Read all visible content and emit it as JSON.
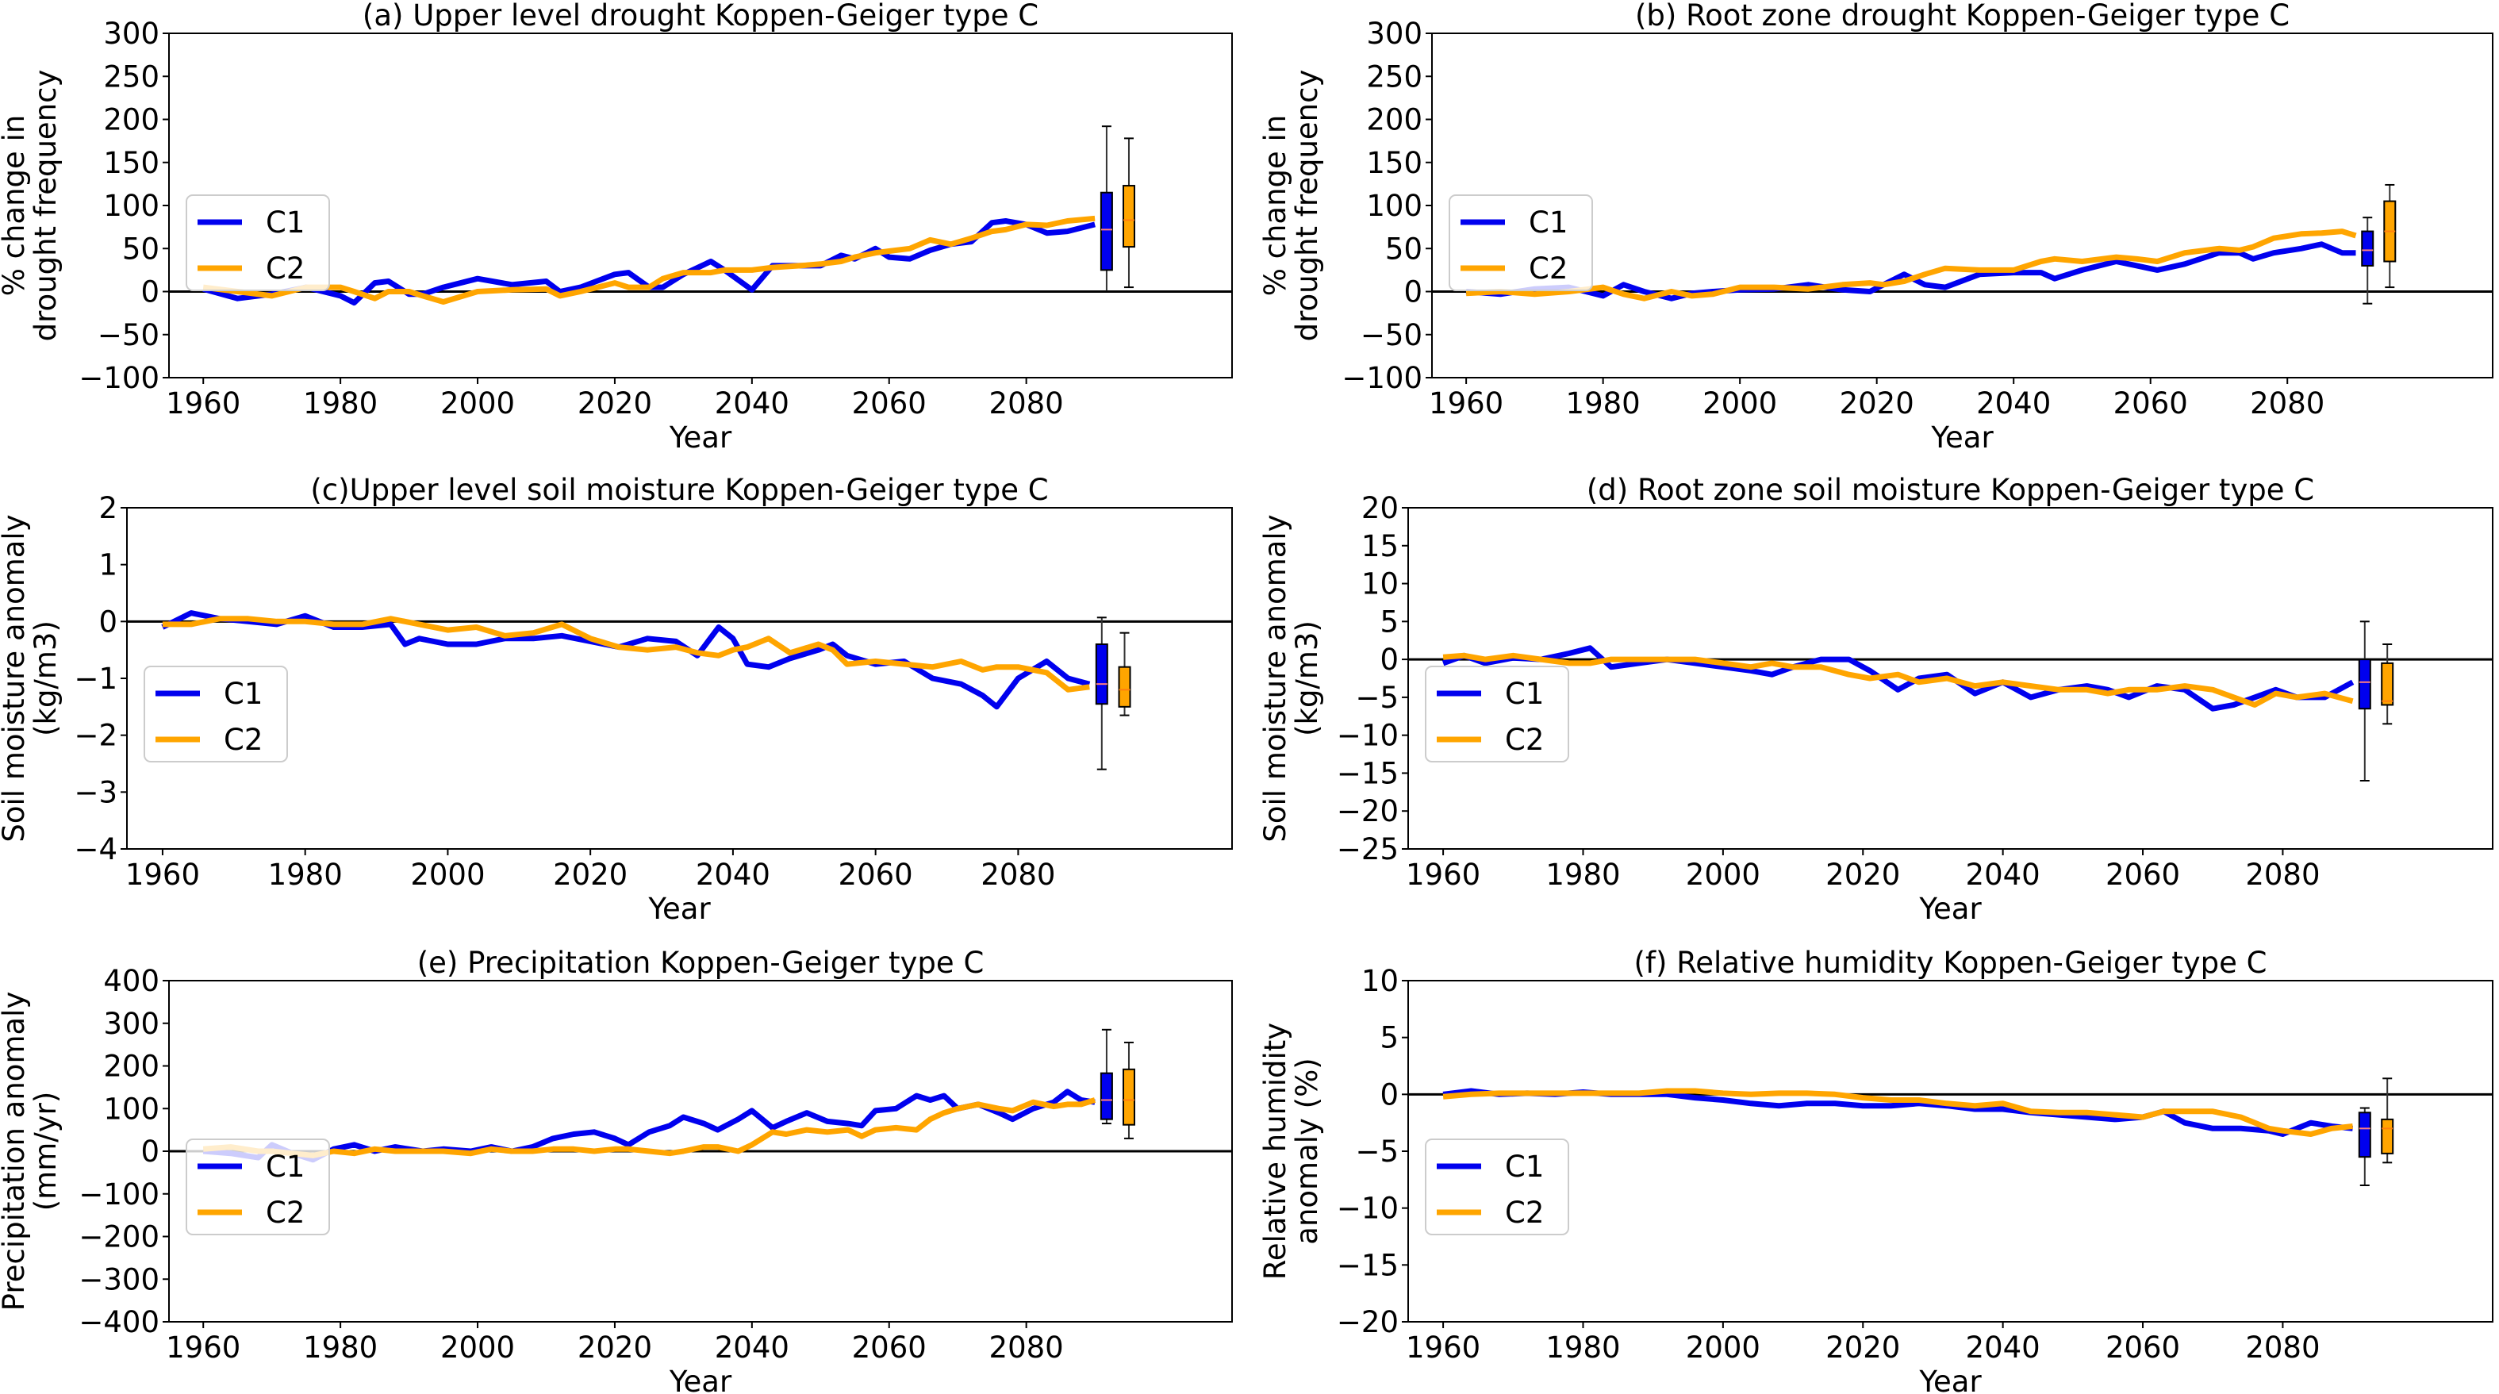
{
  "figure": {
    "colors": {
      "C1": "#0000ee",
      "C2": "#ffa500",
      "zero_line": "#000000",
      "median_C1": "#ff8080",
      "median_C2": "#ff7f0e"
    }
  },
  "chart_data": [
    {
      "id": "a",
      "type": "line",
      "title": "(a) Upper level drought Koppen-Geiger type C",
      "xlabel": "Year",
      "ylabel": [
        "% change in",
        "drought frequency"
      ],
      "xlim": [
        1955,
        2110
      ],
      "ylim": [
        -100,
        300
      ],
      "xticks": [
        1960,
        1980,
        2000,
        2020,
        2040,
        2060,
        2080
      ],
      "yticks": [
        -100,
        -50,
        0,
        50,
        100,
        150,
        200,
        250,
        300
      ],
      "legend": {
        "position": "lower-left",
        "entries": [
          "C1",
          "C2"
        ]
      },
      "x": [
        1960,
        1965,
        1970,
        1975,
        1980,
        1982,
        1985,
        1987,
        1990,
        1992,
        1995,
        2000,
        2005,
        2010,
        2012,
        2015,
        2020,
        2022,
        2025,
        2027,
        2030,
        2034,
        2036,
        2040,
        2043,
        2047,
        2050,
        2053,
        2055,
        2058,
        2060,
        2063,
        2066,
        2069,
        2072,
        2075,
        2077,
        2080,
        2083,
        2086,
        2090
      ],
      "series": [
        {
          "name": "C1",
          "values": [
            3,
            -8,
            -3,
            5,
            -5,
            -13,
            10,
            12,
            -3,
            -3,
            5,
            15,
            8,
            12,
            0,
            5,
            20,
            22,
            5,
            5,
            20,
            35,
            25,
            2,
            30,
            30,
            30,
            42,
            38,
            50,
            40,
            38,
            48,
            55,
            58,
            80,
            82,
            78,
            68,
            70,
            78
          ]
        },
        {
          "name": "C2",
          "values": [
            5,
            0,
            -5,
            5,
            5,
            0,
            -8,
            0,
            0,
            -5,
            -12,
            0,
            2,
            3,
            -5,
            0,
            10,
            5,
            5,
            15,
            22,
            22,
            25,
            25,
            28,
            30,
            32,
            35,
            40,
            45,
            47,
            50,
            60,
            55,
            62,
            70,
            72,
            78,
            77,
            82,
            85
          ]
        }
      ],
      "boxplots": [
        {
          "name": "C1",
          "whisker_low": 0,
          "q1": 25,
          "median": 72,
          "q3": 115,
          "whisker_high": 192
        },
        {
          "name": "C2",
          "whisker_low": 5,
          "q1": 52,
          "median": 83,
          "q3": 123,
          "whisker_high": 178
        }
      ]
    },
    {
      "id": "b",
      "type": "line",
      "title": "(b) Root zone drought Koppen-Geiger type C",
      "xlabel": "Year",
      "ylabel": [
        "% change in",
        "drought frequency"
      ],
      "xlim": [
        1955,
        2110
      ],
      "ylim": [
        -100,
        300
      ],
      "xticks": [
        1960,
        1980,
        2000,
        2020,
        2040,
        2060,
        2080
      ],
      "yticks": [
        -100,
        -50,
        0,
        50,
        100,
        150,
        200,
        250,
        300
      ],
      "legend": {
        "position": "lower-left",
        "entries": [
          "C1",
          "C2"
        ]
      },
      "x": [
        1960,
        1965,
        1970,
        1975,
        1980,
        1983,
        1986,
        1990,
        1993,
        1996,
        2000,
        2005,
        2010,
        2015,
        2019,
        2021,
        2024,
        2027,
        2030,
        2035,
        2040,
        2044,
        2046,
        2050,
        2055,
        2058,
        2061,
        2065,
        2070,
        2073,
        2075,
        2078,
        2082,
        2085,
        2088,
        2090
      ],
      "series": [
        {
          "name": "C1",
          "values": [
            0,
            -3,
            3,
            5,
            -5,
            8,
            0,
            -8,
            -2,
            0,
            2,
            3,
            8,
            2,
            0,
            8,
            20,
            8,
            5,
            20,
            22,
            22,
            15,
            25,
            35,
            30,
            25,
            32,
            45,
            45,
            38,
            45,
            50,
            55,
            45,
            45
          ]
        },
        {
          "name": "C2",
          "values": [
            -2,
            0,
            -3,
            0,
            5,
            -3,
            -8,
            0,
            -5,
            -3,
            5,
            5,
            3,
            8,
            10,
            8,
            12,
            20,
            27,
            25,
            25,
            35,
            38,
            35,
            40,
            38,
            35,
            45,
            50,
            48,
            52,
            62,
            67,
            68,
            70,
            65
          ]
        }
      ],
      "boxplots": [
        {
          "name": "C1",
          "whisker_low": -14,
          "q1": 30,
          "median": 48,
          "q3": 70,
          "whisker_high": 86
        },
        {
          "name": "C2",
          "whisker_low": 5,
          "q1": 35,
          "median": 70,
          "q3": 105,
          "whisker_high": 124
        }
      ]
    },
    {
      "id": "c",
      "type": "line",
      "title": "(c)Upper level soil moisture Koppen-Geiger type C",
      "xlabel": "Year",
      "ylabel": [
        "Soil moisture anomaly",
        "(kg/m3)"
      ],
      "xlim": [
        1955,
        2110
      ],
      "ylim": [
        -4,
        2
      ],
      "xticks": [
        1960,
        1980,
        2000,
        2020,
        2040,
        2060,
        2080
      ],
      "yticks": [
        -4,
        -3,
        -2,
        -1,
        0,
        1,
        2
      ],
      "legend": {
        "position": "lower-left",
        "entries": [
          "C1",
          "C2"
        ]
      },
      "x": [
        1960,
        1964,
        1968,
        1972,
        1976,
        1980,
        1984,
        1988,
        1992,
        1994,
        1996,
        2000,
        2004,
        2008,
        2012,
        2016,
        2020,
        2024,
        2028,
        2032,
        2035,
        2038,
        2040,
        2042,
        2045,
        2048,
        2052,
        2054,
        2056,
        2060,
        2064,
        2068,
        2072,
        2075,
        2077,
        2080,
        2084,
        2087,
        2090
      ],
      "series": [
        {
          "name": "C1",
          "values": [
            -0.1,
            0.15,
            0.05,
            0.0,
            -0.05,
            0.1,
            -0.1,
            -0.1,
            -0.05,
            -0.4,
            -0.3,
            -0.4,
            -0.4,
            -0.3,
            -0.3,
            -0.25,
            -0.35,
            -0.45,
            -0.3,
            -0.35,
            -0.6,
            -0.1,
            -0.3,
            -0.75,
            -0.8,
            -0.65,
            -0.5,
            -0.4,
            -0.6,
            -0.75,
            -0.7,
            -1.0,
            -1.1,
            -1.3,
            -1.5,
            -1.0,
            -0.7,
            -1.0,
            -1.1
          ]
        },
        {
          "name": "C2",
          "values": [
            -0.05,
            -0.05,
            0.05,
            0.05,
            0.0,
            0.0,
            -0.05,
            -0.05,
            0.05,
            0.0,
            -0.05,
            -0.15,
            -0.1,
            -0.25,
            -0.2,
            -0.05,
            -0.3,
            -0.45,
            -0.5,
            -0.45,
            -0.55,
            -0.6,
            -0.5,
            -0.45,
            -0.3,
            -0.55,
            -0.4,
            -0.5,
            -0.75,
            -0.7,
            -0.75,
            -0.8,
            -0.7,
            -0.85,
            -0.8,
            -0.8,
            -0.9,
            -1.2,
            -1.15
          ]
        }
      ],
      "boxplots": [
        {
          "name": "C1",
          "whisker_low": -2.6,
          "q1": -1.45,
          "median": -1.1,
          "q3": -0.4,
          "whisker_high": 0.07
        },
        {
          "name": "C2",
          "whisker_low": -1.65,
          "q1": -1.5,
          "median": -1.2,
          "q3": -0.8,
          "whisker_high": -0.2
        }
      ]
    },
    {
      "id": "d",
      "type": "line",
      "title": "(d) Root zone soil moisture Koppen-Geiger type C",
      "xlabel": "Year",
      "ylabel": [
        "Soil moisture anomaly",
        "(kg/m3)"
      ],
      "xlim": [
        1955,
        2110
      ],
      "ylim": [
        -25,
        20
      ],
      "xticks": [
        1960,
        1980,
        2000,
        2020,
        2040,
        2060,
        2080
      ],
      "yticks": [
        -25,
        -20,
        -15,
        -10,
        -5,
        0,
        5,
        10,
        15,
        20
      ],
      "legend": {
        "position": "lower-left",
        "entries": [
          "C1",
          "C2"
        ]
      },
      "x": [
        1960,
        1963,
        1966,
        1970,
        1974,
        1978,
        1981,
        1984,
        1988,
        1992,
        1996,
        2000,
        2004,
        2007,
        2010,
        2014,
        2018,
        2021,
        2025,
        2028,
        2032,
        2036,
        2040,
        2044,
        2048,
        2052,
        2055,
        2058,
        2062,
        2066,
        2070,
        2073,
        2076,
        2079,
        2082,
        2086,
        2090
      ],
      "series": [
        {
          "name": "C1",
          "values": [
            -0.5,
            0.5,
            -0.5,
            0.2,
            0.0,
            0.8,
            1.5,
            -1.0,
            -0.5,
            0.0,
            -0.5,
            -1.0,
            -1.5,
            -2.0,
            -1.0,
            0.0,
            0.0,
            -1.5,
            -4.0,
            -2.5,
            -2.0,
            -4.5,
            -3.0,
            -5.0,
            -4.0,
            -3.5,
            -4.0,
            -5.0,
            -3.5,
            -4.0,
            -6.5,
            -6.0,
            -5.0,
            -4.0,
            -5.0,
            -5.0,
            -3.0
          ]
        },
        {
          "name": "C2",
          "values": [
            0.3,
            0.5,
            0.0,
            0.5,
            0.0,
            -0.5,
            -0.5,
            0.0,
            0.0,
            0.0,
            0.0,
            -0.5,
            -1.0,
            -0.5,
            -1.0,
            -1.0,
            -2.0,
            -2.5,
            -2.0,
            -3.0,
            -2.5,
            -3.5,
            -3.0,
            -3.5,
            -4.0,
            -4.0,
            -4.5,
            -4.0,
            -4.0,
            -3.5,
            -4.0,
            -5.0,
            -6.0,
            -4.5,
            -5.0,
            -4.5,
            -5.5
          ]
        }
      ],
      "boxplots": [
        {
          "name": "C1",
          "whisker_low": -16,
          "q1": -6.5,
          "median": -3.0,
          "q3": 0.0,
          "whisker_high": 5.0
        },
        {
          "name": "C2",
          "whisker_low": -8.5,
          "q1": -6.0,
          "median": -5.5,
          "q3": -0.5,
          "whisker_high": 2.0
        }
      ]
    },
    {
      "id": "e",
      "type": "line",
      "title": "(e) Precipitation Koppen-Geiger type C",
      "xlabel": "Year",
      "ylabel": [
        "Precipitation anomaly",
        "(mm/yr)"
      ],
      "xlim": [
        1955,
        2110
      ],
      "ylim": [
        -400,
        400
      ],
      "xticks": [
        1960,
        1980,
        2000,
        2020,
        2040,
        2060,
        2080
      ],
      "yticks": [
        -400,
        -300,
        -200,
        -100,
        0,
        100,
        200,
        300,
        400
      ],
      "legend": {
        "position": "lower-left",
        "entries": [
          "C1",
          "C2"
        ]
      },
      "x": [
        1960,
        1964,
        1968,
        1970,
        1973,
        1976,
        1979,
        1982,
        1985,
        1988,
        1992,
        1995,
        1999,
        2002,
        2005,
        2008,
        2011,
        2014,
        2017,
        2020,
        2022,
        2025,
        2028,
        2030,
        2033,
        2035,
        2038,
        2040,
        2043,
        2045,
        2048,
        2051,
        2054,
        2056,
        2058,
        2061,
        2064,
        2066,
        2068,
        2070,
        2073,
        2076,
        2078,
        2081,
        2084,
        2086,
        2088,
        2090
      ],
      "series": [
        {
          "name": "C1",
          "values": [
            0,
            -5,
            -15,
            15,
            -5,
            -20,
            5,
            15,
            0,
            10,
            0,
            5,
            0,
            10,
            0,
            10,
            30,
            40,
            45,
            30,
            15,
            45,
            60,
            80,
            65,
            50,
            75,
            95,
            55,
            70,
            90,
            70,
            65,
            60,
            95,
            100,
            130,
            120,
            130,
            100,
            110,
            90,
            75,
            100,
            115,
            140,
            120,
            115
          ]
        },
        {
          "name": "C2",
          "values": [
            5,
            10,
            0,
            0,
            -5,
            -10,
            0,
            -5,
            5,
            0,
            0,
            0,
            -5,
            5,
            0,
            0,
            5,
            5,
            0,
            5,
            5,
            0,
            -5,
            0,
            10,
            10,
            0,
            15,
            45,
            40,
            50,
            45,
            50,
            35,
            50,
            55,
            50,
            75,
            90,
            100,
            110,
            100,
            95,
            115,
            105,
            110,
            110,
            120
          ]
        }
      ],
      "boxplots": [
        {
          "name": "C1",
          "whisker_low": 65,
          "q1": 75,
          "median": 120,
          "q3": 183,
          "whisker_high": 285
        },
        {
          "name": "C2",
          "whisker_low": 30,
          "q1": 62,
          "median": 120,
          "q3": 192,
          "whisker_high": 255
        }
      ]
    },
    {
      "id": "f",
      "type": "line",
      "title": "(f) Relative humidity Koppen-Geiger type C",
      "xlabel": "Year",
      "ylabel": [
        "Relative humidity",
        "anomaly (%)"
      ],
      "xlim": [
        1955,
        2110
      ],
      "ylim": [
        -20,
        10
      ],
      "xticks": [
        1960,
        1980,
        2000,
        2020,
        2040,
        2060,
        2080
      ],
      "yticks": [
        -20,
        -15,
        -10,
        -5,
        0,
        5,
        10
      ],
      "legend": {
        "position": "lower-left",
        "entries": [
          "C1",
          "C2"
        ]
      },
      "x": [
        1960,
        1964,
        1968,
        1972,
        1976,
        1980,
        1984,
        1988,
        1992,
        1996,
        2000,
        2004,
        2008,
        2012,
        2016,
        2020,
        2024,
        2028,
        2032,
        2036,
        2040,
        2044,
        2048,
        2052,
        2056,
        2060,
        2063,
        2066,
        2070,
        2074,
        2078,
        2080,
        2084,
        2087,
        2090
      ],
      "series": [
        {
          "name": "C1",
          "values": [
            0,
            0.3,
            0,
            0.1,
            0,
            0.2,
            0,
            0,
            0,
            -0.3,
            -0.5,
            -0.8,
            -1.0,
            -0.8,
            -0.8,
            -1.0,
            -1.0,
            -0.8,
            -1.0,
            -1.3,
            -1.3,
            -1.6,
            -1.8,
            -2.0,
            -2.2,
            -2.0,
            -1.5,
            -2.5,
            -3.0,
            -3.0,
            -3.2,
            -3.5,
            -2.5,
            -2.8,
            -3.0
          ]
        },
        {
          "name": "C2",
          "values": [
            -0.2,
            0,
            0.1,
            0.1,
            0.1,
            0.1,
            0.1,
            0.1,
            0.3,
            0.3,
            0.1,
            0,
            0.1,
            0.1,
            0,
            -0.3,
            -0.5,
            -0.5,
            -0.8,
            -1.0,
            -0.8,
            -1.5,
            -1.6,
            -1.6,
            -1.8,
            -2.0,
            -1.5,
            -1.5,
            -1.5,
            -2.0,
            -3.0,
            -3.2,
            -3.5,
            -3.0,
            -2.8
          ]
        }
      ],
      "boxplots": [
        {
          "name": "C1",
          "whisker_low": -8.0,
          "q1": -5.5,
          "median": -3.0,
          "q3": -1.6,
          "whisker_high": -1.2
        },
        {
          "name": "C2",
          "whisker_low": -6.0,
          "q1": -5.2,
          "median": -3.0,
          "q3": -2.2,
          "whisker_high": 1.4
        }
      ]
    }
  ]
}
